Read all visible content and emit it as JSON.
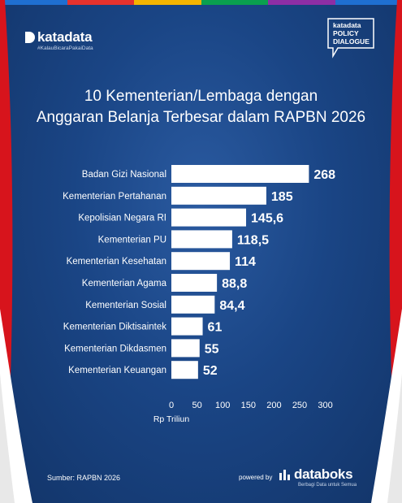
{
  "brand": {
    "name": "katadata",
    "tagline": "#KalauBicaraPakaiData",
    "badge_lines": [
      "katadata",
      "POLICY",
      "DIALOGUE"
    ]
  },
  "title_lines": [
    "10 Kementerian/Lembaga dengan",
    "Anggaran Belanja Terbesar dalam RAPBN 2026"
  ],
  "footer": {
    "source": "Sumber: RAPBN 2026",
    "powered_by": "powered by",
    "databoks_name": "databoks",
    "databoks_tagline": "Berbagi Data untuk Semua"
  },
  "colors": {
    "bar": "#ffffff",
    "background": "#1a4585",
    "curtain_red": "#d7141c",
    "curtain_white": "#ffffff",
    "top_stripe": [
      "#1f6fd1",
      "#e6322d",
      "#f5b400",
      "#0aa04f",
      "#8e2ea5",
      "#1f6fd1"
    ]
  },
  "chart_data": {
    "type": "bar",
    "orientation": "horizontal",
    "title": "10 Kementerian/Lembaga dengan Anggaran Belanja Terbesar dalam RAPBN 2026",
    "categories": [
      "Badan Gizi Nasional",
      "Kementerian Pertahanan",
      "Kepolisian Negara RI",
      "Kementerian PU",
      "Kementerian Kesehatan",
      "Kementerian Agama",
      "Kementerian Sosial",
      "Kementerian Diktisaintek",
      "Kementerian Dikdasmen",
      "Kementerian Keuangan"
    ],
    "values": [
      268,
      185,
      145.6,
      118.5,
      114,
      88.8,
      84.4,
      61,
      55,
      52
    ],
    "value_labels": [
      "268",
      "185",
      "145,6",
      "118,5",
      "114",
      "88,8",
      "84,4",
      "61",
      "55",
      "52"
    ],
    "xlabel": "Rp Triliun",
    "ylabel": "",
    "xlim": [
      0,
      300
    ],
    "xticks": [
      0,
      50,
      100,
      150,
      200,
      250,
      300
    ],
    "grid": false,
    "legend": "none"
  }
}
